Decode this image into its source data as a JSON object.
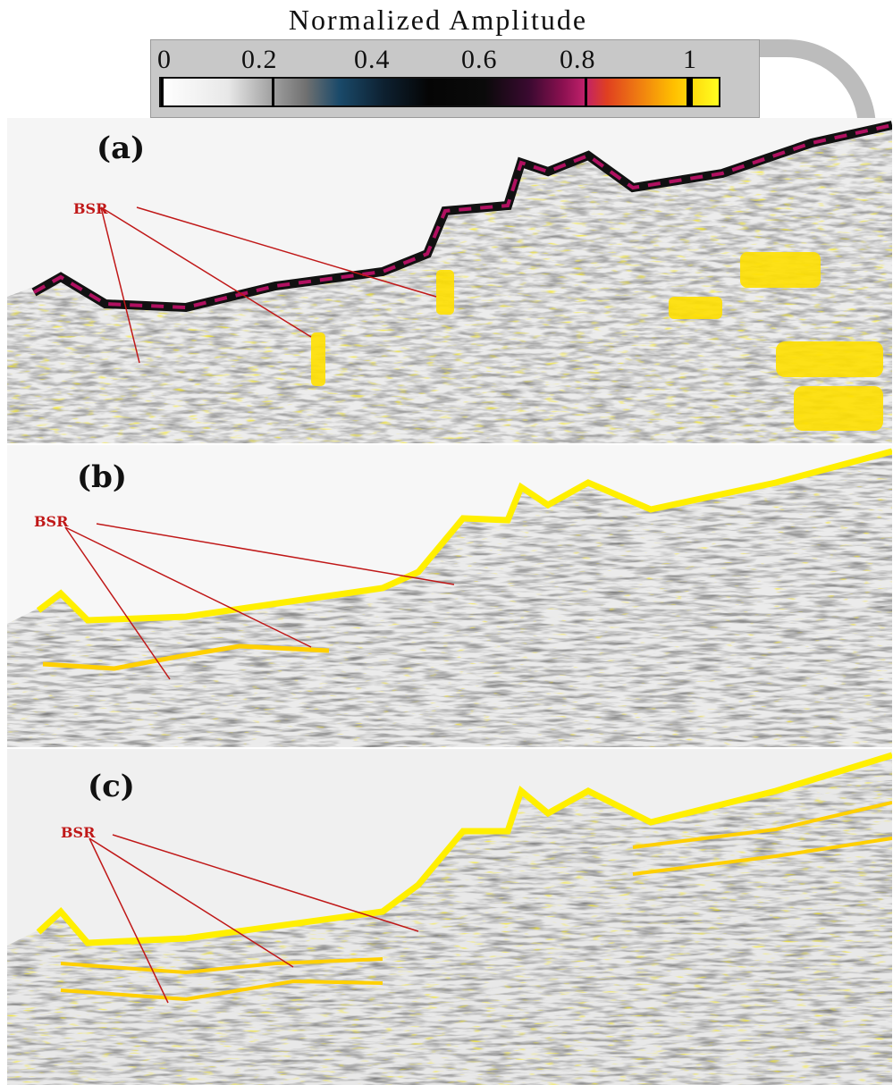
{
  "colorbar": {
    "title": "Normalized Amplitude",
    "ticks": [
      "0",
      "0.2",
      "0.4",
      "0.6",
      "0.8",
      "1"
    ],
    "colors": [
      "#ffffff",
      "#8a8a8a",
      "#1a4a6a",
      "#050505",
      "#c0206a",
      "#f08010",
      "#ffff20"
    ]
  },
  "panels": [
    {
      "label": "(a)",
      "annotation": "BSR"
    },
    {
      "label": "(b)",
      "annotation": "BSR"
    },
    {
      "label": "(c)",
      "annotation": "BSR"
    }
  ],
  "annotation_color": "#c01818"
}
